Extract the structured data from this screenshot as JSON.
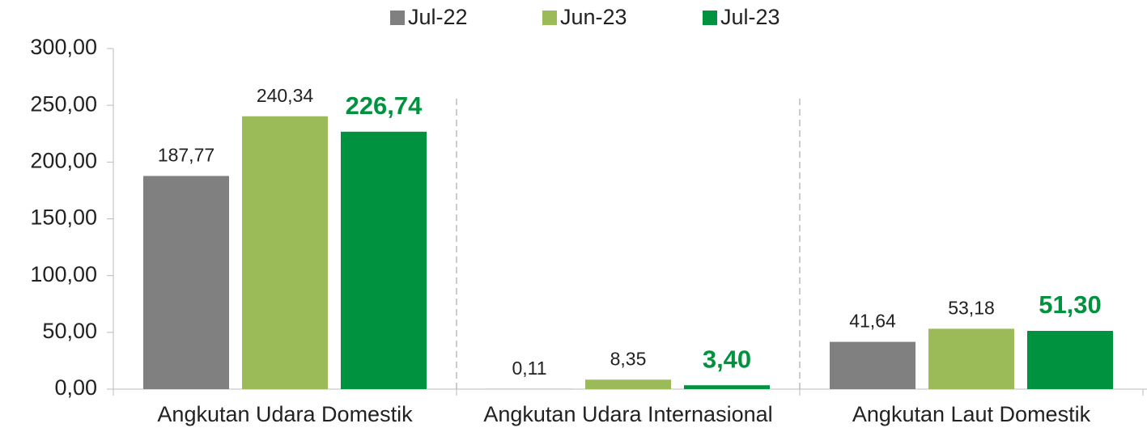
{
  "chart_data": {
    "type": "bar",
    "categories": [
      "Angkutan Udara Domestik",
      "Angkutan Udara Internasional",
      "Angkutan Laut Domestik"
    ],
    "series": [
      {
        "name": "Jul-22",
        "color": "#808080",
        "values": [
          187.77,
          0.11,
          41.64
        ],
        "value_labels": [
          "187,77",
          "0,11",
          "41,64"
        ]
      },
      {
        "name": "Jun-23",
        "color": "#9bbb59",
        "values": [
          240.34,
          8.35,
          53.18
        ],
        "value_labels": [
          "240,34",
          "8,35",
          "53,18"
        ]
      },
      {
        "name": "Jul-23",
        "color": "#00923f",
        "values": [
          226.74,
          3.4,
          51.3
        ],
        "value_labels": [
          "226,74",
          "3,40",
          "51,30"
        ]
      }
    ],
    "ylim": [
      0,
      300
    ],
    "yticks": [
      {
        "value": 0,
        "label": "0,00"
      },
      {
        "value": 50,
        "label": "50,00"
      },
      {
        "value": 100,
        "label": "100,00"
      },
      {
        "value": 150,
        "label": "150,00"
      },
      {
        "value": 200,
        "label": "200,00"
      },
      {
        "value": 250,
        "label": "250,00"
      },
      {
        "value": 300,
        "label": "300,00"
      }
    ],
    "legend": "top"
  }
}
